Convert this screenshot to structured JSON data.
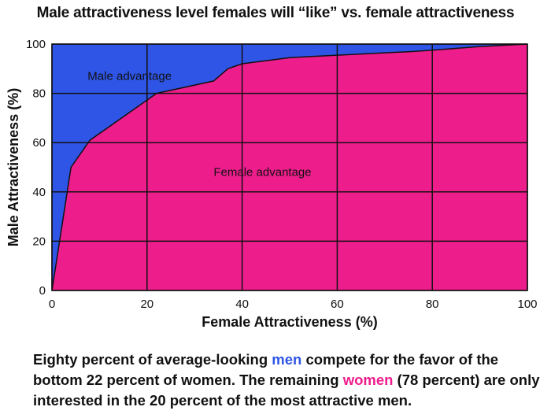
{
  "chart_data": {
    "type": "area",
    "title": "Male attractiveness level females will “like” vs. female attractiveness",
    "xlabel": "Female Attractiveness (%)",
    "ylabel": "Male Attractiveness (%)",
    "xlim": [
      0,
      100
    ],
    "ylim": [
      0,
      100
    ],
    "xticks": [
      "0",
      "20",
      "40",
      "60",
      "80",
      "100"
    ],
    "yticks": [
      "0",
      "20",
      "40",
      "60",
      "80",
      "100"
    ],
    "grid": true,
    "x": [
      0,
      4,
      8,
      22,
      34,
      37,
      40,
      50,
      60,
      76,
      80,
      90,
      100
    ],
    "y": [
      0,
      50,
      61,
      80,
      85,
      90,
      92,
      94.5,
      95.5,
      97,
      97.5,
      99,
      100
    ],
    "regions": [
      {
        "label": "Male advantage",
        "color": "#2f55e6"
      },
      {
        "label": "Female advantage",
        "color": "#ee1d8c"
      }
    ]
  },
  "caption": {
    "part1": "Eighty percent of average-looking ",
    "men": "men",
    "part2": " compete for the favor of the bottom 22 percent of women.  The remaining ",
    "women": "women",
    "part3": " (78 percent) are only interested in the 20 percent of the most attractive men."
  }
}
